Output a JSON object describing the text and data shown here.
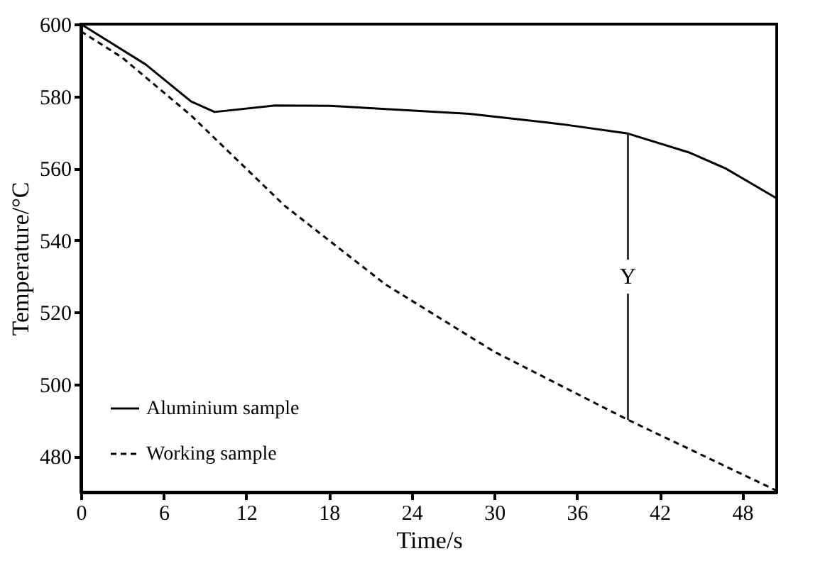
{
  "chart_data": {
    "type": "line",
    "xlabel": "Time/s",
    "ylabel": "Temperature/°C",
    "xlim": [
      0,
      50.5
    ],
    "xticks": [
      0,
      6,
      12,
      18,
      24,
      30,
      36,
      42,
      48
    ],
    "ylim": [
      470,
      600
    ],
    "yticks": [
      480,
      500,
      520,
      540,
      560,
      580,
      600
    ],
    "legend": "bottom left",
    "grid": false,
    "marker": "none",
    "series": [
      {
        "name": "Aluminium sample",
        "color": "#000000",
        "line_style": "solid",
        "x": [
          0,
          4.7,
          8.0,
          9.7,
          14.1,
          18.1,
          28.2,
          34.9,
          39.7,
          44.1,
          46.8,
          50.5
        ],
        "values": [
          600,
          588.8,
          578.5,
          575.6,
          577.4,
          577.3,
          575.1,
          572.2,
          569.6,
          564.4,
          559.9,
          551.6
        ]
      },
      {
        "name": "Working sample",
        "color": "#000000",
        "line_style": "dashed",
        "x": [
          0,
          3.0,
          8.0,
          14.8,
          22.1,
          30.0,
          39.7,
          50.5
        ],
        "values": [
          598,
          590.7,
          574.6,
          549.5,
          527.7,
          509,
          490.1,
          470.4
        ]
      }
    ],
    "annotations": [
      {
        "text": "Y",
        "x": 39.7,
        "y": 569.6
      }
    ]
  }
}
